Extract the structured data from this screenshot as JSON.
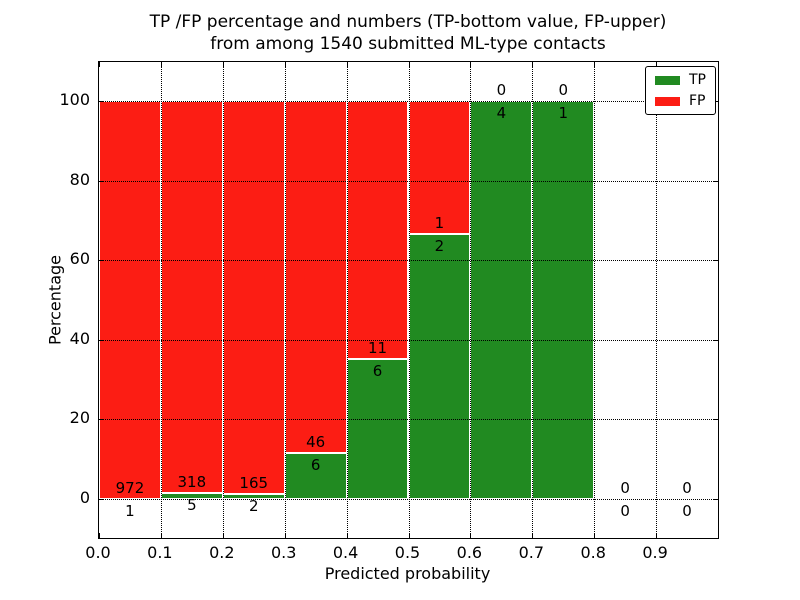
{
  "title": {
    "line1": "TP /FP percentage and numbers (TP-bottom value, FP-upper)",
    "line2": "from among 1540 submitted ML-type contacts"
  },
  "chart_data": {
    "type": "bar",
    "stacked": true,
    "title": "TP /FP percentage and numbers (TP-bottom value, FP-upper) from among 1540 submitted ML-type contacts",
    "xlabel": "Predicted probability",
    "ylabel": "Percentage",
    "bin_width": 0.1,
    "bins": [
      {
        "range": [
          0.0,
          0.1
        ],
        "tp": 1,
        "fp": 972
      },
      {
        "range": [
          0.1,
          0.2
        ],
        "tp": 5,
        "fp": 318
      },
      {
        "range": [
          0.2,
          0.3
        ],
        "tp": 2,
        "fp": 165
      },
      {
        "range": [
          0.3,
          0.4
        ],
        "tp": 6,
        "fp": 46
      },
      {
        "range": [
          0.4,
          0.5
        ],
        "tp": 6,
        "fp": 11
      },
      {
        "range": [
          0.5,
          0.6
        ],
        "tp": 2,
        "fp": 1
      },
      {
        "range": [
          0.6,
          0.7
        ],
        "tp": 4,
        "fp": 0
      },
      {
        "range": [
          0.7,
          0.8
        ],
        "tp": 1,
        "fp": 0
      },
      {
        "range": [
          0.8,
          0.9
        ],
        "tp": 0,
        "fp": 0
      },
      {
        "range": [
          0.9,
          1.0
        ],
        "tp": 0,
        "fp": 0
      }
    ],
    "series": [
      {
        "name": "TP",
        "color": "#218a21",
        "values": [
          1,
          5,
          2,
          6,
          6,
          2,
          4,
          1,
          0,
          0
        ]
      },
      {
        "name": "FP",
        "color": "#fc1d14",
        "values": [
          972,
          318,
          165,
          46,
          11,
          1,
          0,
          0,
          0,
          0
        ]
      }
    ],
    "x_ticks": [
      "0.0",
      "0.1",
      "0.2",
      "0.3",
      "0.4",
      "0.5",
      "0.6",
      "0.7",
      "0.8",
      "0.9"
    ],
    "y_ticks": [
      0,
      20,
      40,
      60,
      80,
      100
    ],
    "xlim": [
      0.0,
      1.0
    ],
    "ylim": [
      -10,
      110
    ],
    "grid": true,
    "grid_style": "dotted",
    "legend": {
      "position": "upper right",
      "entries": [
        {
          "label": "TP",
          "color": "#218a21"
        },
        {
          "label": "FP",
          "color": "#fc1d14"
        }
      ]
    }
  }
}
